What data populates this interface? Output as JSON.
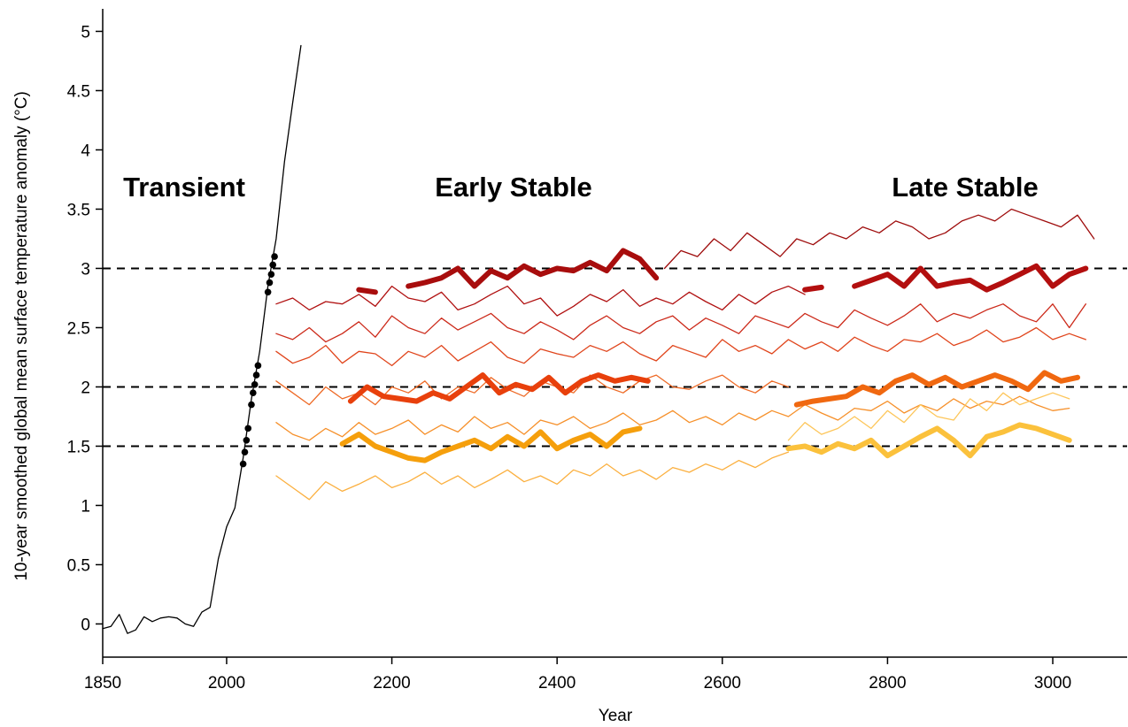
{
  "chart_data": {
    "type": "line",
    "xlabel": "Year",
    "ylabel": "10-year smoothed global mean surface temperature anomaly (°C)",
    "annotations": [
      "Transient",
      "Early Stable",
      "Late Stable"
    ],
    "xlim": [
      1850,
      3090
    ],
    "ylim": [
      -0.28,
      5.19
    ],
    "xticks": [
      1850,
      2000,
      2200,
      2400,
      2600,
      2800,
      3000
    ],
    "yticks": [
      0,
      0.5,
      1,
      1.5,
      2,
      2.5,
      3,
      3.5,
      4,
      4.5,
      5
    ],
    "hlines": [
      1.5,
      2,
      3
    ],
    "series": [
      {
        "style": "thin",
        "color": "#000000",
        "x": [
          1850,
          1860,
          1870,
          1880,
          1890,
          1900,
          1910,
          1920,
          1930,
          1940,
          1950,
          1960,
          1970,
          1980,
          1990,
          2000,
          2010,
          2020,
          2030,
          2040,
          2050,
          2060,
          2070,
          2080,
          2090
        ],
        "values": [
          -0.04,
          -0.02,
          0.08,
          -0.08,
          -0.05,
          0.06,
          0.02,
          0.05,
          0.06,
          0.05,
          0.0,
          -0.02,
          0.1,
          0.14,
          0.55,
          0.82,
          0.98,
          1.4,
          1.9,
          2.3,
          2.85,
          3.25,
          3.9,
          4.4,
          4.88
        ]
      },
      {
        "style": "points",
        "color": "#000000",
        "x": [
          2020,
          2022,
          2024,
          2026,
          2030,
          2032,
          2034,
          2036,
          2038,
          2050,
          2052,
          2054,
          2056,
          2058
        ],
        "values": [
          1.35,
          1.45,
          1.55,
          1.65,
          1.85,
          1.95,
          2.02,
          2.1,
          2.18,
          2.8,
          2.88,
          2.95,
          3.03,
          3.1
        ]
      },
      {
        "style": "thin",
        "color": "#9e0b0b",
        "x": [
          2530,
          2550,
          2570,
          2590,
          2610,
          2630,
          2650,
          2670,
          2690,
          2710,
          2730,
          2750,
          2770,
          2790,
          2810,
          2830,
          2850,
          2870,
          2890,
          2910,
          2930,
          2950,
          2970,
          2990,
          3010,
          3030,
          3050
        ],
        "values": [
          3.0,
          3.15,
          3.1,
          3.25,
          3.15,
          3.3,
          3.2,
          3.1,
          3.25,
          3.2,
          3.3,
          3.25,
          3.35,
          3.3,
          3.4,
          3.35,
          3.25,
          3.3,
          3.4,
          3.45,
          3.4,
          3.5,
          3.45,
          3.4,
          3.35,
          3.45,
          3.25
        ]
      },
      {
        "style": "thin",
        "color": "#b01010",
        "x": [
          2060,
          2080,
          2100,
          2120,
          2140,
          2160,
          2180,
          2200,
          2220,
          2240,
          2260,
          2280,
          2300,
          2320,
          2340,
          2360,
          2380,
          2400,
          2420,
          2440,
          2460,
          2480,
          2500,
          2520,
          2540,
          2560,
          2580,
          2600,
          2620,
          2640,
          2660,
          2680,
          2700
        ],
        "values": [
          2.7,
          2.75,
          2.65,
          2.72,
          2.7,
          2.78,
          2.68,
          2.85,
          2.75,
          2.72,
          2.8,
          2.65,
          2.7,
          2.78,
          2.85,
          2.7,
          2.75,
          2.6,
          2.68,
          2.78,
          2.72,
          2.82,
          2.68,
          2.75,
          2.7,
          2.8,
          2.72,
          2.65,
          2.78,
          2.7,
          2.8,
          2.85,
          2.78
        ]
      },
      {
        "style": "thin",
        "color": "#cc2a1a",
        "x": [
          2060,
          2080,
          2100,
          2120,
          2140,
          2160,
          2180,
          2200,
          2220,
          2240,
          2260,
          2280,
          2300,
          2320,
          2340,
          2360,
          2380,
          2400,
          2420,
          2440,
          2460,
          2480,
          2500,
          2520,
          2540,
          2560,
          2580,
          2600,
          2620,
          2640,
          2660,
          2680,
          2700,
          2720,
          2740,
          2760,
          2780,
          2800,
          2820,
          2840,
          2860,
          2880,
          2900,
          2920,
          2940,
          2960,
          2980,
          3000,
          3020,
          3040
        ],
        "values": [
          2.45,
          2.4,
          2.5,
          2.38,
          2.45,
          2.55,
          2.42,
          2.6,
          2.5,
          2.45,
          2.58,
          2.48,
          2.55,
          2.62,
          2.5,
          2.45,
          2.55,
          2.48,
          2.4,
          2.52,
          2.6,
          2.5,
          2.45,
          2.55,
          2.6,
          2.48,
          2.58,
          2.52,
          2.45,
          2.6,
          2.55,
          2.5,
          2.62,
          2.55,
          2.5,
          2.65,
          2.58,
          2.52,
          2.6,
          2.7,
          2.55,
          2.62,
          2.58,
          2.65,
          2.7,
          2.6,
          2.55,
          2.7,
          2.5,
          2.7
        ]
      },
      {
        "style": "thin",
        "color": "#e0451c",
        "x": [
          2060,
          2080,
          2100,
          2120,
          2140,
          2160,
          2180,
          2200,
          2220,
          2240,
          2260,
          2280,
          2300,
          2320,
          2340,
          2360,
          2380,
          2400,
          2420,
          2440,
          2460,
          2480,
          2500,
          2520,
          2540,
          2560,
          2580,
          2600,
          2620,
          2640,
          2660,
          2680,
          2700,
          2720,
          2740,
          2760,
          2780,
          2800,
          2820,
          2840,
          2860,
          2880,
          2900,
          2920,
          2940,
          2960,
          2980,
          3000,
          3020,
          3040
        ],
        "values": [
          2.3,
          2.2,
          2.25,
          2.35,
          2.2,
          2.3,
          2.28,
          2.18,
          2.3,
          2.25,
          2.35,
          2.22,
          2.3,
          2.38,
          2.25,
          2.2,
          2.32,
          2.28,
          2.25,
          2.35,
          2.3,
          2.38,
          2.28,
          2.22,
          2.35,
          2.3,
          2.25,
          2.4,
          2.3,
          2.35,
          2.28,
          2.4,
          2.32,
          2.38,
          2.3,
          2.42,
          2.35,
          2.3,
          2.4,
          2.38,
          2.45,
          2.35,
          2.4,
          2.48,
          2.38,
          2.42,
          2.5,
          2.4,
          2.45,
          2.4
        ]
      },
      {
        "style": "thin",
        "color": "#ee6a26",
        "x": [
          2060,
          2080,
          2100,
          2120,
          2140,
          2160,
          2180,
          2200,
          2220,
          2240,
          2260,
          2280,
          2300,
          2320,
          2340,
          2360,
          2380,
          2400,
          2420,
          2440,
          2460,
          2480,
          2500,
          2520,
          2540,
          2560,
          2580,
          2600,
          2620,
          2640,
          2660,
          2680
        ],
        "values": [
          2.05,
          1.95,
          1.85,
          2.0,
          1.9,
          1.95,
          1.85,
          2.0,
          1.95,
          2.05,
          1.9,
          2.0,
          1.95,
          2.08,
          1.98,
          1.92,
          2.05,
          2.0,
          1.95,
          2.1,
          2.0,
          1.95,
          2.05,
          2.1,
          2.0,
          1.98,
          2.05,
          2.1,
          2.0,
          1.95,
          2.05,
          2.0
        ]
      },
      {
        "style": "thin",
        "color": "#f6902a",
        "x": [
          2060,
          2080,
          2100,
          2120,
          2140,
          2160,
          2180,
          2200,
          2220,
          2240,
          2260,
          2280,
          2300,
          2320,
          2340,
          2360,
          2380,
          2400,
          2420,
          2440,
          2460,
          2480,
          2500,
          2520,
          2540,
          2560,
          2580,
          2600,
          2620,
          2640,
          2660,
          2680,
          2700,
          2720,
          2740,
          2760,
          2780,
          2800,
          2820,
          2840,
          2860,
          2880,
          2900,
          2920,
          2940,
          2960,
          2980,
          3000,
          3020
        ],
        "values": [
          1.7,
          1.6,
          1.55,
          1.65,
          1.58,
          1.7,
          1.6,
          1.65,
          1.72,
          1.6,
          1.68,
          1.62,
          1.75,
          1.65,
          1.7,
          1.6,
          1.72,
          1.68,
          1.75,
          1.65,
          1.7,
          1.78,
          1.68,
          1.72,
          1.8,
          1.7,
          1.75,
          1.68,
          1.78,
          1.72,
          1.8,
          1.75,
          1.85,
          1.78,
          1.72,
          1.82,
          1.8,
          1.88,
          1.78,
          1.85,
          1.8,
          1.9,
          1.82,
          1.88,
          1.85,
          1.92,
          1.85,
          1.8,
          1.82
        ]
      },
      {
        "style": "thin",
        "color": "#fbb040",
        "x": [
          2060,
          2080,
          2100,
          2120,
          2140,
          2160,
          2180,
          2200,
          2220,
          2240,
          2260,
          2280,
          2300,
          2320,
          2340,
          2360,
          2380,
          2400,
          2420,
          2440,
          2460,
          2480,
          2500,
          2520,
          2540,
          2560,
          2580,
          2600,
          2620,
          2640,
          2660,
          2680
        ],
        "values": [
          1.25,
          1.15,
          1.05,
          1.2,
          1.12,
          1.18,
          1.25,
          1.15,
          1.2,
          1.28,
          1.18,
          1.25,
          1.15,
          1.22,
          1.3,
          1.2,
          1.25,
          1.18,
          1.3,
          1.25,
          1.35,
          1.25,
          1.3,
          1.22,
          1.32,
          1.28,
          1.35,
          1.3,
          1.38,
          1.32,
          1.4,
          1.45
        ]
      },
      {
        "style": "thin",
        "color": "#fdc65a",
        "x": [
          2680,
          2700,
          2720,
          2740,
          2760,
          2780,
          2800,
          2820,
          2840,
          2860,
          2880,
          2900,
          2920,
          2940,
          2960,
          2980,
          3000,
          3020
        ],
        "values": [
          1.55,
          1.7,
          1.6,
          1.65,
          1.75,
          1.65,
          1.8,
          1.7,
          1.85,
          1.75,
          1.72,
          1.9,
          1.8,
          1.95,
          1.85,
          1.9,
          1.95,
          1.9
        ]
      },
      {
        "style": "thick",
        "color": "#a80d0d",
        "x": [
          2160,
          2180,
          2200,
          2220,
          2240,
          2260,
          2280,
          2300,
          2320,
          2340,
          2360,
          2380,
          2400,
          2420,
          2440,
          2460,
          2480,
          2500,
          2520
        ],
        "values": [
          2.82,
          2.8,
          null,
          2.85,
          2.88,
          2.92,
          3.0,
          2.85,
          2.98,
          2.92,
          3.02,
          2.95,
          3.0,
          2.98,
          3.05,
          2.98,
          3.15,
          3.08,
          2.92
        ]
      },
      {
        "style": "thick",
        "color": "#b30f0f",
        "x": [
          2700,
          2720,
          2740,
          2760,
          2780,
          2800,
          2820,
          2840,
          2860,
          2880,
          2900,
          2920,
          2940,
          2960,
          2980,
          3000,
          3020,
          3040
        ],
        "values": [
          2.82,
          2.84,
          null,
          2.85,
          2.9,
          2.95,
          2.85,
          3.0,
          2.85,
          2.88,
          2.9,
          2.82,
          2.88,
          2.95,
          3.02,
          2.85,
          2.95,
          3.0
        ]
      },
      {
        "style": "thick",
        "color": "#e8400c",
        "x": [
          2150,
          2170,
          2190,
          2210,
          2230,
          2250,
          2270,
          2290,
          2310,
          2330,
          2350,
          2370,
          2390,
          2410,
          2430,
          2450,
          2470,
          2490,
          2510
        ],
        "values": [
          1.88,
          2.0,
          1.92,
          1.9,
          1.88,
          1.95,
          1.9,
          2.0,
          2.1,
          1.95,
          2.02,
          1.98,
          2.08,
          1.95,
          2.05,
          2.1,
          2.05,
          2.08,
          2.05
        ]
      },
      {
        "style": "thick",
        "color": "#f06810",
        "x": [
          2690,
          2710,
          2730,
          2750,
          2770,
          2790,
          2810,
          2830,
          2850,
          2870,
          2890,
          2910,
          2930,
          2950,
          2970,
          2990,
          3010,
          3030
        ],
        "values": [
          1.85,
          1.88,
          1.9,
          1.92,
          2.0,
          1.95,
          2.05,
          2.1,
          2.02,
          2.08,
          2.0,
          2.05,
          2.1,
          2.05,
          1.98,
          2.12,
          2.05,
          2.08
        ]
      },
      {
        "style": "thick",
        "color": "#f59f0c",
        "x": [
          2140,
          2160,
          2180,
          2200,
          2220,
          2240,
          2260,
          2280,
          2300,
          2320,
          2340,
          2360,
          2380,
          2400,
          2420,
          2440,
          2460,
          2480,
          2500
        ],
        "values": [
          1.52,
          1.6,
          1.5,
          1.45,
          1.4,
          1.38,
          1.45,
          1.5,
          1.55,
          1.48,
          1.58,
          1.5,
          1.62,
          1.48,
          1.55,
          1.6,
          1.5,
          1.62,
          1.65
        ]
      },
      {
        "style": "thick",
        "color": "#fbc13c",
        "x": [
          2680,
          2700,
          2720,
          2740,
          2760,
          2780,
          2800,
          2820,
          2840,
          2860,
          2880,
          2900,
          2920,
          2940,
          2960,
          2980,
          3000,
          3020
        ],
        "values": [
          1.48,
          1.5,
          1.45,
          1.52,
          1.48,
          1.55,
          1.42,
          1.5,
          1.58,
          1.65,
          1.55,
          1.42,
          1.58,
          1.62,
          1.68,
          1.65,
          1.6,
          1.55
        ]
      }
    ]
  }
}
